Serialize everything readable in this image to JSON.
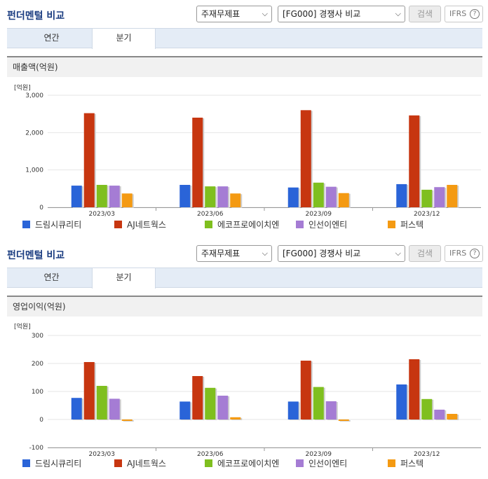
{
  "panels": [
    {
      "title": "펀더멘털 비교",
      "select_type": "주재무제표",
      "select_comp": "[FG000] 경쟁사 비교",
      "search_label": "검색",
      "ifrs_label": "IFRS",
      "ifrs_help": "?",
      "tabs": [
        "연간",
        "분기"
      ],
      "active_tab": "분기",
      "metric_label": "매출액(억원)",
      "unit_label": "[억원]"
    },
    {
      "title": "펀더멘털 비교",
      "select_type": "주재무제표",
      "select_comp": "[FG000] 경쟁사 비교",
      "search_label": "검색",
      "ifrs_label": "IFRS",
      "ifrs_help": "?",
      "tabs": [
        "연간",
        "분기"
      ],
      "active_tab": "분기",
      "metric_label": "영업이익(억원)",
      "unit_label": "[억원]"
    }
  ],
  "colors": {
    "드림시큐리티": "#2a64d8",
    "AJ네트웍스": "#c73610",
    "에코프로에이치엔": "#7fbf1f",
    "인선이엔티": "#a57cd4",
    "퍼스텍": "#f49a12"
  },
  "chart_data": [
    {
      "type": "bar",
      "title": "매출액(억원)",
      "ylabel": "[억원]",
      "categories": [
        "2023/03",
        "2023/06",
        "2023/09",
        "2023/12"
      ],
      "yticks": [
        0,
        1000,
        2000,
        3000
      ],
      "ytick_labels": [
        "0",
        "1,000",
        "2,000",
        "3,000"
      ],
      "ylim": [
        0,
        3000
      ],
      "grid": true,
      "legend": "bottom",
      "series": [
        {
          "name": "드림시큐리티",
          "values": [
            580,
            600,
            530,
            620
          ]
        },
        {
          "name": "AJ네트웍스",
          "values": [
            2520,
            2400,
            2600,
            2460
          ]
        },
        {
          "name": "에코프로에이치엔",
          "values": [
            600,
            560,
            660,
            470
          ]
        },
        {
          "name": "인선이엔티",
          "values": [
            580,
            560,
            550,
            540
          ]
        },
        {
          "name": "퍼스텍",
          "values": [
            370,
            370,
            380,
            600
          ]
        }
      ]
    },
    {
      "type": "bar",
      "title": "영업이익(억원)",
      "ylabel": "[억원]",
      "categories": [
        "2023/03",
        "2023/06",
        "2023/09",
        "2023/12"
      ],
      "yticks": [
        -100,
        0,
        100,
        200,
        300
      ],
      "ytick_labels": [
        "-100",
        "0",
        "100",
        "200",
        "300"
      ],
      "ylim": [
        -100,
        300
      ],
      "grid": true,
      "legend": "bottom",
      "series": [
        {
          "name": "드림시큐리티",
          "values": [
            77,
            64,
            64,
            125
          ]
        },
        {
          "name": "AJ네트웍스",
          "values": [
            205,
            155,
            210,
            215
          ]
        },
        {
          "name": "에코프로에이치엔",
          "values": [
            120,
            113,
            116,
            73
          ]
        },
        {
          "name": "인선이엔티",
          "values": [
            74,
            85,
            65,
            35
          ]
        },
        {
          "name": "퍼스텍",
          "values": [
            -5,
            8,
            -5,
            20
          ]
        }
      ]
    }
  ]
}
